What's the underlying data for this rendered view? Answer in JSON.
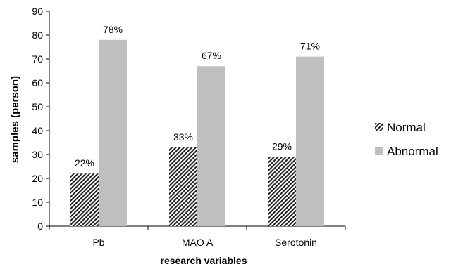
{
  "chart_data": {
    "type": "bar",
    "title": "",
    "xlabel": "research variables",
    "ylabel": "samples (person)",
    "categories": [
      "Pb",
      "MAO A",
      "Serotonin"
    ],
    "series": [
      {
        "name": "Normal",
        "values": [
          22,
          33,
          29
        ],
        "labels": [
          "22%",
          "33%",
          "29%"
        ],
        "fill": "hatched",
        "color": "#222222"
      },
      {
        "name": "Abnormal",
        "values": [
          78,
          67,
          71
        ],
        "labels": [
          "78%",
          "67%",
          "71%"
        ],
        "fill": "solid",
        "color": "#bfbfbf"
      }
    ],
    "ylim": [
      0,
      90
    ],
    "yticks": [
      0,
      10,
      20,
      30,
      40,
      50,
      60,
      70,
      80,
      90
    ],
    "grid": false,
    "legend": "right"
  }
}
